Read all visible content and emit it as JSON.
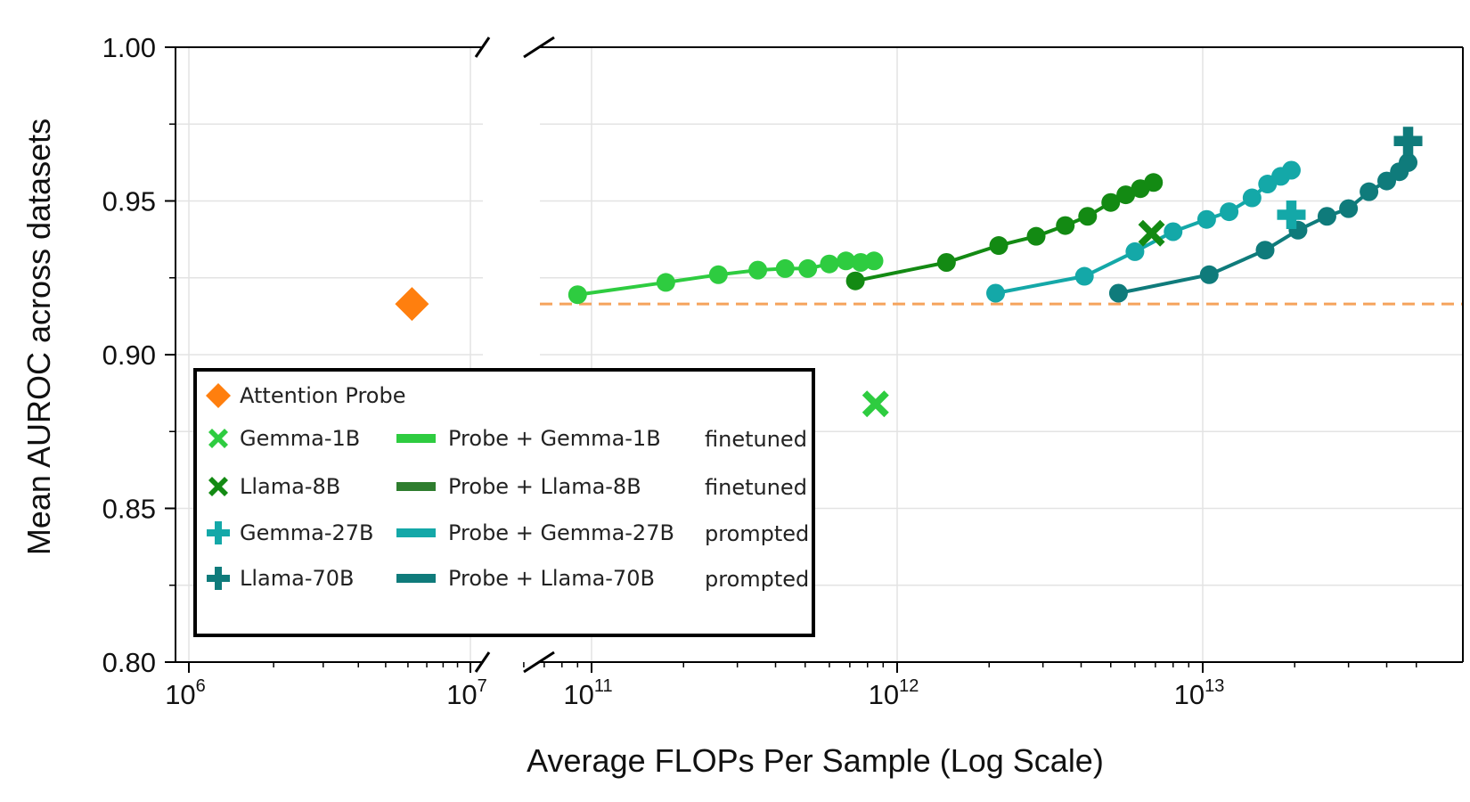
{
  "chart_data": {
    "type": "line",
    "ylabel": "Mean AUROC across datasets",
    "xlabel": "Average FLOPs Per Sample (Log Scale)",
    "ylim": [
      0.8,
      1.0
    ],
    "y_ticks": [
      "0.80",
      "0.85",
      "0.90",
      "0.95",
      "1.00"
    ],
    "y_tick_values": [
      0.8,
      0.85,
      0.9,
      0.95,
      1.0
    ],
    "x_axis_broken": true,
    "left_panel_xlim": [
      1000000.0,
      10000000.0
    ],
    "right_panel_xlim": [
      55000000000.0,
      57000000000000.0
    ],
    "x_ticks_left": [
      {
        "base": "10",
        "exp": "6",
        "value": 1000000.0
      },
      {
        "base": "10",
        "exp": "7",
        "value": 10000000.0
      }
    ],
    "x_ticks_right": [
      {
        "base": "10",
        "exp": "11",
        "value": 100000000000.0
      },
      {
        "base": "10",
        "exp": "12",
        "value": 1000000000000.0
      },
      {
        "base": "10",
        "exp": "13",
        "value": 10000000000000.0
      }
    ],
    "reference_line": {
      "name": "Attention Probe AUROC",
      "y": 0.9165,
      "style": "dashed",
      "color": "#f5a35c"
    },
    "points": [
      {
        "name": "Attention Probe",
        "x": 6200000.0,
        "y": 0.9165,
        "marker": "diamond",
        "color": "#ff7f0e"
      },
      {
        "name": "Gemma-1B",
        "x": 850000000000.0,
        "y": 0.884,
        "marker": "x",
        "color": "#2ecc40"
      },
      {
        "name": "Llama-8B",
        "x": 6800000000000.0,
        "y": 0.9395,
        "marker": "x",
        "color": "#138a13"
      },
      {
        "name": "Gemma-27B",
        "x": 19500000000000.0,
        "y": 0.9455,
        "marker": "plus",
        "color": "#14a8a8"
      },
      {
        "name": "Llama-70B",
        "x": 47000000000000.0,
        "y": 0.9695,
        "marker": "plus",
        "color": "#0f7b7b"
      }
    ],
    "series": [
      {
        "name": "Probe + Gemma-1B",
        "color": "#2ecc40",
        "x": [
          90000000000.0,
          175000000000.0,
          260000000000.0,
          350000000000.0,
          430000000000.0,
          510000000000.0,
          600000000000.0,
          680000000000.0,
          760000000000.0,
          840000000000.0
        ],
        "y": [
          0.9195,
          0.9235,
          0.926,
          0.9275,
          0.928,
          0.928,
          0.9295,
          0.9305,
          0.93,
          0.9305
        ]
      },
      {
        "name": "Probe + Llama-8B",
        "color": "#138a13",
        "x": [
          730000000000.0,
          1450000000000.0,
          2150000000000.0,
          2850000000000.0,
          3550000000000.0,
          4200000000000.0,
          5000000000000.0,
          5600000000000.0,
          6250000000000.0,
          6900000000000.0
        ],
        "y": [
          0.924,
          0.93,
          0.9355,
          0.9385,
          0.942,
          0.945,
          0.9495,
          0.952,
          0.954,
          0.956
        ]
      },
      {
        "name": "Probe + Gemma-27B",
        "color": "#14a8a8",
        "x": [
          2100000000000.0,
          4100000000000.0,
          6000000000000.0,
          8000000000000.0,
          10300000000000.0,
          12200000000000.0,
          14500000000000.0,
          16300000000000.0,
          18000000000000.0,
          19500000000000.0
        ],
        "y": [
          0.92,
          0.9255,
          0.9335,
          0.94,
          0.944,
          0.9465,
          0.951,
          0.9555,
          0.958,
          0.96
        ]
      },
      {
        "name": "Probe + Llama-70B",
        "color": "#0f7b7b",
        "x": [
          5300000000000.0,
          10500000000000.0,
          16000000000000.0,
          20500000000000.0,
          25500000000000.0,
          30000000000000.0,
          35000000000000.0,
          40000000000000.0,
          44000000000000.0,
          47000000000000.0
        ],
        "y": [
          0.92,
          0.926,
          0.934,
          0.9405,
          0.945,
          0.9475,
          0.953,
          0.9565,
          0.9595,
          0.9625
        ]
      }
    ]
  },
  "legend": {
    "attention_probe": "Attention Probe",
    "gemma_1b": "Gemma-1B",
    "llama_8b": "Llama-8B",
    "gemma_27b": "Gemma-27B",
    "llama_70b": "Llama-70B",
    "probe_gemma_1b": "Probe + Gemma-1B",
    "probe_llama_8b": "Probe + Llama-8B",
    "probe_gemma_27b": "Probe + Gemma-27B",
    "probe_llama_70b": "Probe + Llama-70B",
    "note_gemma_1b": "finetuned",
    "note_llama_8b": "finetuned",
    "note_gemma_27b": "prompted",
    "note_llama_70b": "prompted"
  },
  "colors": {
    "attention_probe": "#ff7f0e",
    "gemma_1b": "#2ecc40",
    "llama_8b": "#138a13",
    "gemma_27b": "#14a8a8",
    "llama_70b": "#0f7b7b",
    "probe_llama_8b_legend": "#2e7d2e"
  }
}
